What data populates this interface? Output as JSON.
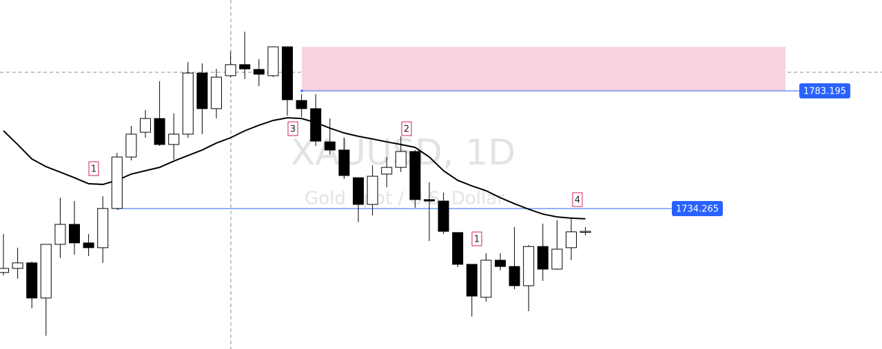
{
  "chart_data": {
    "type": "candlestick",
    "title": "XAUUSD, 1D",
    "subtitle": "Gold Spot / U.S. Dollar",
    "ylim": [
      1675.9,
      1820.96
    ],
    "up_color": "#ffffff",
    "down_color": "#000000",
    "open": [
      1707.7,
      1709.4,
      1711.7,
      1697.1,
      1719.4,
      1727.7,
      1720.0,
      1718.0,
      1734.3,
      1755.7,
      1766.0,
      1771.7,
      1760.9,
      1765.2,
      1790.6,
      1775.8,
      1789.5,
      1794.1,
      1792.1,
      1789.5,
      1801.5,
      1779.2,
      1775.8,
      1762.0,
      1758.6,
      1747.1,
      1736.0,
      1748.6,
      1751.4,
      1758.0,
      1738.0,
      1737.4,
      1724.3,
      1711.1,
      1697.4,
      1712.8,
      1710.2,
      1702.2,
      1718.5,
      1709.1,
      1718.0,
      1724.6
    ],
    "high": [
      1723.7,
      1718.0,
      1712.2,
      1719.4,
      1738.8,
      1737.4,
      1723.7,
      1739.4,
      1757.4,
      1768.6,
      1775.2,
      1787.2,
      1773.8,
      1795.2,
      1794.6,
      1792.3,
      1799.5,
      1807.8,
      1796.4,
      1801.5,
      1801.5,
      1781.8,
      1781.8,
      1771.7,
      1763.7,
      1747.1,
      1752.3,
      1755.7,
      1764.3,
      1758.6,
      1745.2,
      1740.9,
      1724.3,
      1711.1,
      1715.7,
      1715.7,
      1726.6,
      1719.1,
      1728.0,
      1729.4,
      1730.0,
      1726.6
    ],
    "low": [
      1706.5,
      1705.1,
      1692.8,
      1681.4,
      1713.7,
      1715.1,
      1714.5,
      1711.7,
      1734.3,
      1754.3,
      1763.7,
      1760.3,
      1754.6,
      1763.7,
      1765.2,
      1771.7,
      1788.9,
      1788.1,
      1785.2,
      1788.9,
      1772.9,
      1772.3,
      1760.3,
      1756.6,
      1746.6,
      1728.6,
      1731.4,
      1743.1,
      1749.4,
      1734.6,
      1720.8,
      1723.7,
      1709.9,
      1689.4,
      1695.6,
      1708.6,
      1700.8,
      1691.6,
      1704.2,
      1708.8,
      1712.8,
      1723.1
    ],
    "close": [
      1709.4,
      1711.7,
      1697.1,
      1719.4,
      1727.7,
      1720.0,
      1718.0,
      1734.3,
      1755.7,
      1765.2,
      1771.7,
      1760.9,
      1765.2,
      1790.6,
      1775.8,
      1788.9,
      1794.1,
      1792.3,
      1790.1,
      1801.5,
      1779.5,
      1775.8,
      1762.3,
      1758.6,
      1748.0,
      1736.0,
      1747.7,
      1751.4,
      1758.0,
      1738.0,
      1737.4,
      1724.8,
      1711.1,
      1697.9,
      1712.8,
      1710.2,
      1702.2,
      1718.5,
      1709.1,
      1717.4,
      1724.6,
      1724.8
    ],
    "ma": {
      "color": "#000000",
      "values": [
        1766.6,
        1760.9,
        1754.9,
        1751.7,
        1749.4,
        1747.1,
        1744.6,
        1744.3,
        1746.0,
        1748.6,
        1750.0,
        1751.4,
        1754.0,
        1756.3,
        1758.6,
        1761.5,
        1763.7,
        1766.6,
        1768.9,
        1770.9,
        1772.0,
        1771.7,
        1770.0,
        1767.7,
        1765.7,
        1764.3,
        1763.2,
        1762.0,
        1760.9,
        1759.7,
        1755.7,
        1750.0,
        1746.0,
        1743.7,
        1741.7,
        1738.8,
        1736.3,
        1734.0,
        1732.0,
        1730.8,
        1730.3,
        1730.0
      ]
    },
    "zone": {
      "color": "#f8d3df",
      "range": [
        1783.195,
        1801.5
      ]
    },
    "levels": [
      {
        "value": 1783.195,
        "color": "#2962ff"
      },
      {
        "value": 1734.265,
        "color": "#2962ff"
      }
    ],
    "annotations": [
      "1",
      "3",
      "2",
      "1",
      "4"
    ]
  }
}
